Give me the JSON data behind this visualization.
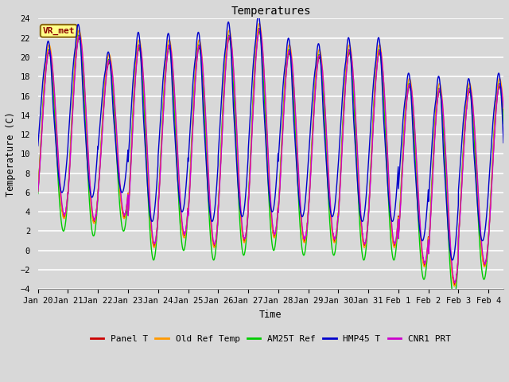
{
  "title": "Temperatures",
  "xlabel": "Time",
  "ylabel": "Temperature (C)",
  "ylim": [
    -4,
    24
  ],
  "yticks": [
    -4,
    -2,
    0,
    2,
    4,
    6,
    8,
    10,
    12,
    14,
    16,
    18,
    20,
    22,
    24
  ],
  "series_colors": {
    "Panel T": "#cc0000",
    "Old Ref Temp": "#ff9900",
    "AM25T Ref": "#00cc00",
    "HMP45 T": "#0000cc",
    "CNR1 PRT": "#cc00cc"
  },
  "legend_labels": [
    "Panel T",
    "Old Ref Temp",
    "AM25T Ref",
    "HMP45 T",
    "CNR1 PRT"
  ],
  "station_label": "VR_met",
  "bg_color": "#d8d8d8",
  "plot_bg_color": "#d8d8d8",
  "grid_color": "#ffffff",
  "figsize": [
    6.4,
    4.8
  ],
  "dpi": 100,
  "date_labels": [
    "Jan 20",
    "Jan 21",
    "Jan 22",
    "Jan 23",
    "Jan 24",
    "Jan 25",
    "Jan 26",
    "Jan 27",
    "Jan 28",
    "Jan 29",
    "Jan 30",
    "Jan 31",
    "Feb 1",
    "Feb 2",
    "Feb 3",
    "Feb 4"
  ],
  "date_tick_positions": [
    0,
    1,
    2,
    3,
    4,
    5,
    6,
    7,
    8,
    9,
    10,
    11,
    12,
    13,
    14,
    15
  ],
  "day_mins_base": [
    3.5,
    3.0,
    3.5,
    0.5,
    1.5,
    0.5,
    1.0,
    1.5,
    1.0,
    1.0,
    0.5,
    0.5,
    -1.5,
    -3.5,
    -1.5,
    -1.5
  ],
  "day_maxes_base": [
    20.5,
    22.0,
    19.5,
    21.0,
    21.0,
    21.0,
    22.0,
    22.7,
    20.5,
    20.0,
    20.5,
    20.5,
    17.0,
    16.5,
    16.5,
    17.0
  ]
}
